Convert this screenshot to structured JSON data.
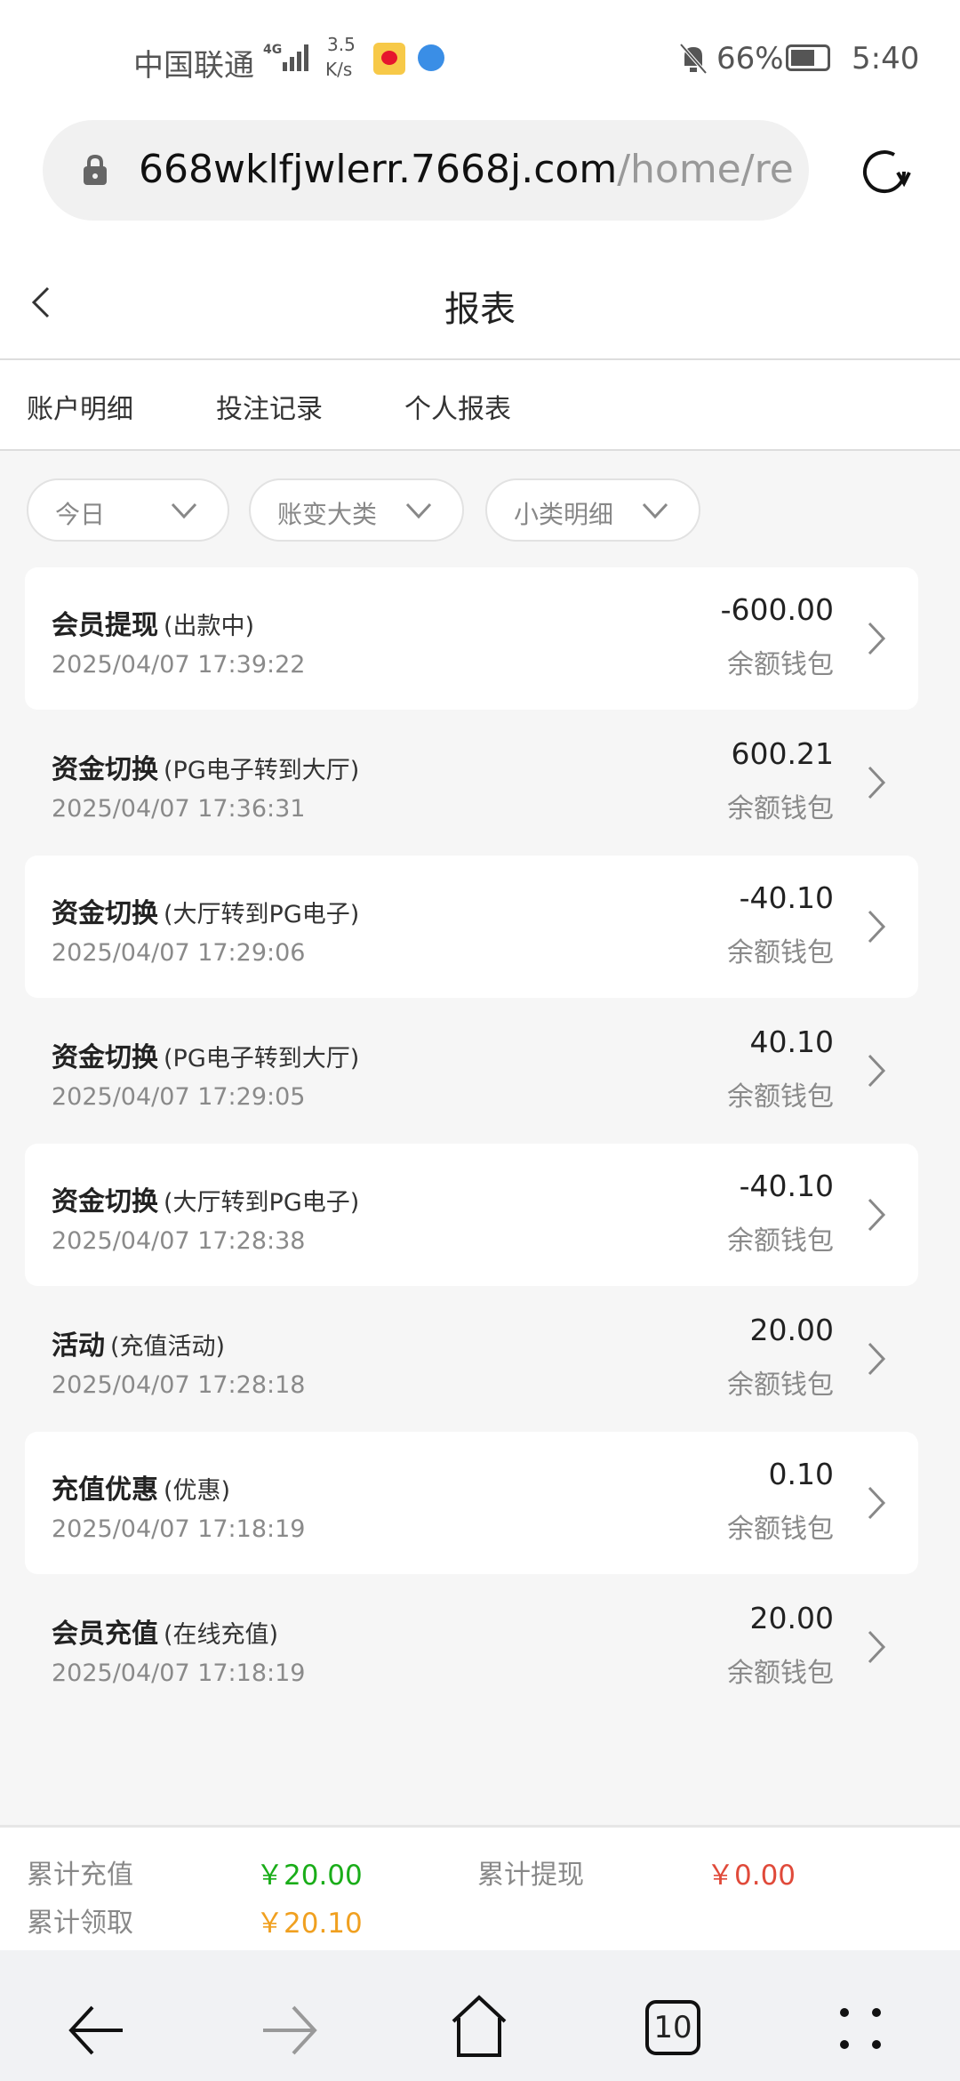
{
  "status_bar": {
    "carrier": "中国联通",
    "network": "4G",
    "speed_value": "3.5",
    "speed_unit": "K/s",
    "battery": "66%",
    "time": "5:40"
  },
  "browser": {
    "url_domain": "668wklfjwlerr.7668j.com",
    "url_path": "/home/rep"
  },
  "header": {
    "title": "报表"
  },
  "tabs": [
    {
      "label": "账户明细"
    },
    {
      "label": "投注记录"
    },
    {
      "label": "个人报表"
    }
  ],
  "filters": [
    {
      "label": "今日"
    },
    {
      "label": "账变大类"
    },
    {
      "label": "小类明细"
    }
  ],
  "records": [
    {
      "name": "会员提现",
      "sub": "(出款中)",
      "time": "2025/04/07 17:39:22",
      "amount": "-600.00",
      "wallet": "余额钱包"
    },
    {
      "name": "资金切换",
      "sub": "(PG电子转到大厅)",
      "time": "2025/04/07 17:36:31",
      "amount": "600.21",
      "wallet": "余额钱包"
    },
    {
      "name": "资金切换",
      "sub": "(大厅转到PG电子)",
      "time": "2025/04/07 17:29:06",
      "amount": "-40.10",
      "wallet": "余额钱包"
    },
    {
      "name": "资金切换",
      "sub": "(PG电子转到大厅)",
      "time": "2025/04/07 17:29:05",
      "amount": "40.10",
      "wallet": "余额钱包"
    },
    {
      "name": "资金切换",
      "sub": "(大厅转到PG电子)",
      "time": "2025/04/07 17:28:38",
      "amount": "-40.10",
      "wallet": "余额钱包"
    },
    {
      "name": "活动",
      "sub": "(充值活动)",
      "time": "2025/04/07 17:28:18",
      "amount": "20.00",
      "wallet": "余额钱包"
    },
    {
      "name": "充值优惠",
      "sub": "(优惠)",
      "time": "2025/04/07 17:18:19",
      "amount": "0.10",
      "wallet": "余额钱包"
    },
    {
      "name": "会员充值",
      "sub": "(在线充值)",
      "time": "2025/04/07 17:18:19",
      "amount": "20.00",
      "wallet": "余额钱包"
    }
  ],
  "summary": {
    "recharge_label": "累计充值",
    "recharge_value": "￥20.00",
    "recharge_color": "#1aad19",
    "withdraw_label": "累计提现",
    "withdraw_value": "￥0.00",
    "withdraw_color": "#e04a3a",
    "claim_label": "累计领取",
    "claim_value": "￥20.10",
    "claim_color": "#f0a020"
  },
  "nav": {
    "tab_count": "10"
  }
}
